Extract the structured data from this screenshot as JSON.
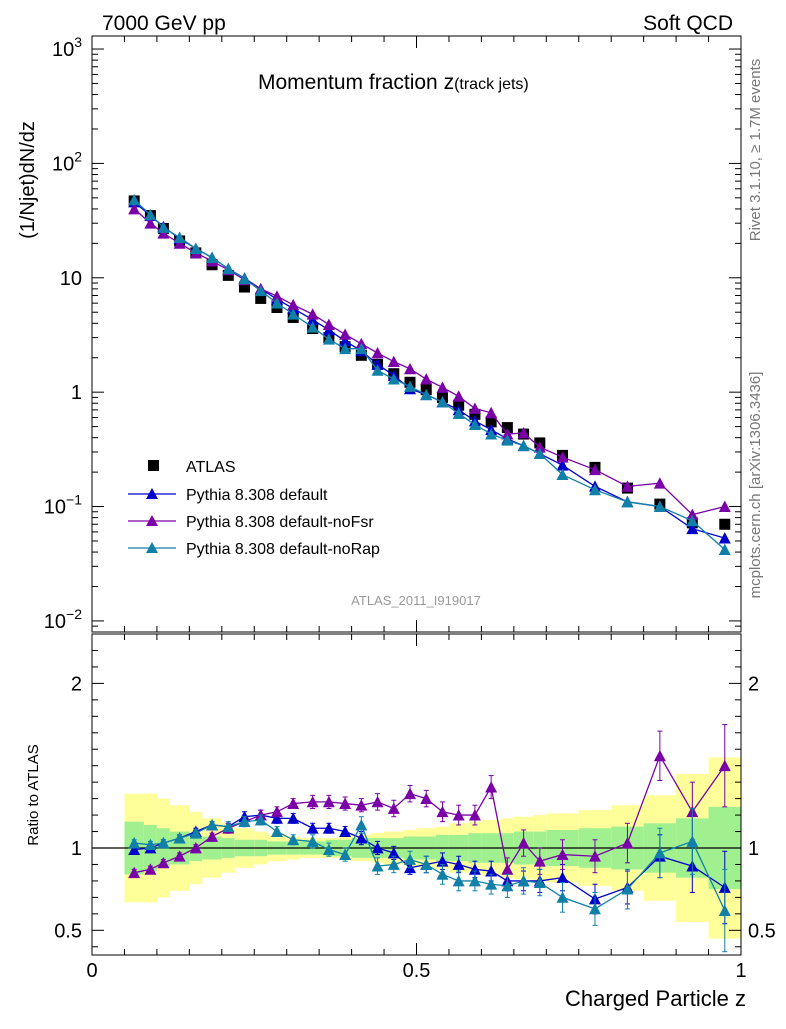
{
  "header": {
    "left": "7000 GeV pp",
    "right": "Soft QCD"
  },
  "side_labels": {
    "upper": "Rivet 3.1.10, ≥ 1.7M events",
    "lower": "mcplots.cern.ch [arXiv:1306.3436]"
  },
  "watermark": "ATLAS_2011_I919017",
  "chart_data": [
    {
      "type": "line",
      "title": "Momentum fraction z",
      "title_suffix": "(track jets)",
      "xlabel": "",
      "ylabel": "(1/Njet)dN/dz",
      "yscale": "log",
      "ylim": [
        0.008,
        1300
      ],
      "xlim": [
        0,
        1
      ],
      "y_tick_labels": [
        {
          "value": 0.01,
          "label": "10",
          "exp": "−2"
        },
        {
          "value": 0.1,
          "label": "10",
          "exp": "−1"
        },
        {
          "value": 1,
          "label": "1",
          "exp": ""
        },
        {
          "value": 10,
          "label": "10",
          "exp": ""
        },
        {
          "value": 100,
          "label": "10",
          "exp": "2"
        },
        {
          "value": 1000,
          "label": "10",
          "exp": "3"
        }
      ],
      "legend_position": "bottom-left",
      "colors": {
        "ATLAS": "#000000",
        "default": "#0000cc",
        "noFsr": "#7a00a8",
        "noRap": "#1080a8"
      },
      "x": [
        0.065,
        0.09,
        0.11,
        0.135,
        0.16,
        0.185,
        0.21,
        0.235,
        0.26,
        0.285,
        0.31,
        0.34,
        0.365,
        0.39,
        0.415,
        0.44,
        0.465,
        0.49,
        0.515,
        0.54,
        0.565,
        0.59,
        0.615,
        0.64,
        0.665,
        0.69,
        0.725,
        0.775,
        0.825,
        0.875,
        0.925,
        0.975
      ],
      "series": [
        {
          "name": "ATLAS",
          "key": "ATLAS",
          "marker": "square",
          "values": [
            47,
            35,
            27,
            21,
            16.5,
            13,
            10.5,
            8.3,
            6.6,
            5.5,
            4.5,
            3.6,
            3.0,
            2.5,
            2.1,
            1.75,
            1.45,
            1.22,
            1.05,
            0.9,
            0.77,
            0.64,
            0.55,
            0.49,
            0.43,
            0.36,
            0.28,
            0.22,
            0.145,
            0.105,
            0.072,
            0.07
          ]
        },
        {
          "name": "Pythia 8.308 default",
          "key": "default",
          "marker": "triangle",
          "values": [
            46,
            35,
            28,
            22,
            18,
            15,
            12,
            9.9,
            8.0,
            6.5,
            5.4,
            4.3,
            3.5,
            2.8,
            2.3,
            1.75,
            1.4,
            1.07,
            0.95,
            0.82,
            0.7,
            0.56,
            0.47,
            0.39,
            0.34,
            0.29,
            0.23,
            0.15,
            0.11,
            0.1,
            0.064,
            0.053
          ]
        },
        {
          "name": "Pythia 8.308 default-noFsr",
          "key": "noFsr",
          "marker": "triangle",
          "values": [
            40,
            30,
            24.5,
            20,
            16.5,
            14,
            11.7,
            9.6,
            8.0,
            6.9,
            5.8,
            4.8,
            3.9,
            3.2,
            2.65,
            2.2,
            1.85,
            1.6,
            1.3,
            1.1,
            0.92,
            0.72,
            0.66,
            0.43,
            0.44,
            0.33,
            0.27,
            0.21,
            0.15,
            0.16,
            0.085,
            0.1
          ]
        },
        {
          "name": "Pythia 8.308 default-noRap",
          "key": "noRap",
          "marker": "triangle",
          "values": [
            48,
            35.5,
            27.5,
            22.5,
            18,
            15,
            12,
            9.8,
            7.7,
            6.0,
            4.8,
            3.7,
            2.9,
            2.4,
            2.4,
            1.55,
            1.3,
            1.12,
            0.95,
            0.82,
            0.65,
            0.52,
            0.43,
            0.38,
            0.34,
            0.29,
            0.19,
            0.14,
            0.11,
            0.1,
            0.075,
            0.042
          ]
        }
      ]
    },
    {
      "type": "line",
      "xlabel": "Charged Particle z",
      "ylabel": "Ratio to ATLAS",
      "xlim": [
        0,
        1
      ],
      "ylim": [
        0.35,
        2.3
      ],
      "x_tick_labels": [
        "0",
        "0.5",
        "1"
      ],
      "y_tick_labels": [
        "0.5",
        "1",
        "2"
      ],
      "band_colors": {
        "inner": "#a0f090",
        "outer": "#ffff99"
      },
      "bins": [
        0.05,
        0.08,
        0.1,
        0.12,
        0.15,
        0.17,
        0.2,
        0.22,
        0.25,
        0.27,
        0.3,
        0.32,
        0.36,
        0.38,
        0.4,
        0.43,
        0.45,
        0.48,
        0.5,
        0.53,
        0.55,
        0.58,
        0.6,
        0.63,
        0.65,
        0.68,
        0.7,
        0.75,
        0.8,
        0.85,
        0.9,
        0.95,
        1.0
      ],
      "band_inner": [
        0.16,
        0.14,
        0.12,
        0.1,
        0.08,
        0.07,
        0.06,
        0.05,
        0.05,
        0.04,
        0.04,
        0.04,
        0.05,
        0.05,
        0.06,
        0.06,
        0.06,
        0.07,
        0.07,
        0.08,
        0.08,
        0.09,
        0.09,
        0.09,
        0.1,
        0.1,
        0.11,
        0.12,
        0.13,
        0.15,
        0.18,
        0.25
      ],
      "band_outer": [
        0.33,
        0.33,
        0.3,
        0.26,
        0.22,
        0.18,
        0.15,
        0.12,
        0.1,
        0.08,
        0.07,
        0.06,
        0.06,
        0.07,
        0.08,
        0.09,
        0.1,
        0.11,
        0.12,
        0.13,
        0.15,
        0.16,
        0.17,
        0.18,
        0.19,
        0.2,
        0.21,
        0.23,
        0.26,
        0.32,
        0.45,
        0.55
      ],
      "x": [
        0.065,
        0.09,
        0.11,
        0.135,
        0.16,
        0.185,
        0.21,
        0.235,
        0.26,
        0.285,
        0.31,
        0.34,
        0.365,
        0.39,
        0.415,
        0.44,
        0.465,
        0.49,
        0.515,
        0.54,
        0.565,
        0.59,
        0.615,
        0.64,
        0.665,
        0.69,
        0.725,
        0.775,
        0.825,
        0.875,
        0.925,
        0.975
      ],
      "series": [
        {
          "name": "Pythia 8.308 default",
          "key": "default",
          "values": [
            0.99,
            1.0,
            1.03,
            1.06,
            1.1,
            1.14,
            1.13,
            1.19,
            1.2,
            1.18,
            1.18,
            1.12,
            1.12,
            1.1,
            1.06,
            1.0,
            0.97,
            0.88,
            0.9,
            0.92,
            0.9,
            0.87,
            0.86,
            0.8,
            0.8,
            0.8,
            0.82,
            0.69,
            0.76,
            0.95,
            0.89,
            0.76
          ],
          "err": [
            0.02,
            0.02,
            0.02,
            0.02,
            0.02,
            0.02,
            0.02,
            0.03,
            0.03,
            0.03,
            0.03,
            0.03,
            0.03,
            0.03,
            0.04,
            0.04,
            0.04,
            0.04,
            0.05,
            0.05,
            0.05,
            0.05,
            0.06,
            0.06,
            0.06,
            0.07,
            0.08,
            0.09,
            0.1,
            0.13,
            0.16,
            0.22
          ]
        },
        {
          "name": "Pythia 8.308 default-noFsr",
          "key": "noFsr",
          "values": [
            0.85,
            0.87,
            0.91,
            0.95,
            1.0,
            1.07,
            1.12,
            1.16,
            1.2,
            1.22,
            1.27,
            1.28,
            1.28,
            1.27,
            1.26,
            1.28,
            1.24,
            1.33,
            1.3,
            1.22,
            1.2,
            1.2,
            1.37,
            0.87,
            1.03,
            0.92,
            0.96,
            0.95,
            1.03,
            1.56,
            1.22,
            1.5
          ],
          "err": [
            0.02,
            0.02,
            0.02,
            0.02,
            0.02,
            0.02,
            0.03,
            0.03,
            0.03,
            0.03,
            0.03,
            0.04,
            0.04,
            0.04,
            0.04,
            0.05,
            0.05,
            0.05,
            0.05,
            0.06,
            0.06,
            0.06,
            0.07,
            0.07,
            0.08,
            0.08,
            0.09,
            0.1,
            0.12,
            0.15,
            0.18,
            0.25
          ]
        },
        {
          "name": "Pythia 8.308 default-noRap",
          "key": "noRap",
          "values": [
            1.03,
            1.02,
            1.03,
            1.06,
            1.09,
            1.14,
            1.13,
            1.16,
            1.17,
            1.1,
            1.05,
            1.04,
            0.99,
            0.96,
            1.14,
            0.89,
            0.9,
            0.93,
            0.9,
            0.84,
            0.8,
            0.8,
            0.78,
            0.77,
            0.8,
            0.79,
            0.7,
            0.63,
            0.75,
            0.97,
            1.04,
            0.62
          ],
          "err": [
            0.02,
            0.02,
            0.02,
            0.02,
            0.02,
            0.02,
            0.03,
            0.03,
            0.03,
            0.03,
            0.03,
            0.04,
            0.04,
            0.04,
            0.05,
            0.05,
            0.05,
            0.05,
            0.05,
            0.06,
            0.06,
            0.06,
            0.06,
            0.07,
            0.08,
            0.08,
            0.09,
            0.1,
            0.12,
            0.15,
            0.2,
            0.25
          ]
        }
      ]
    }
  ]
}
